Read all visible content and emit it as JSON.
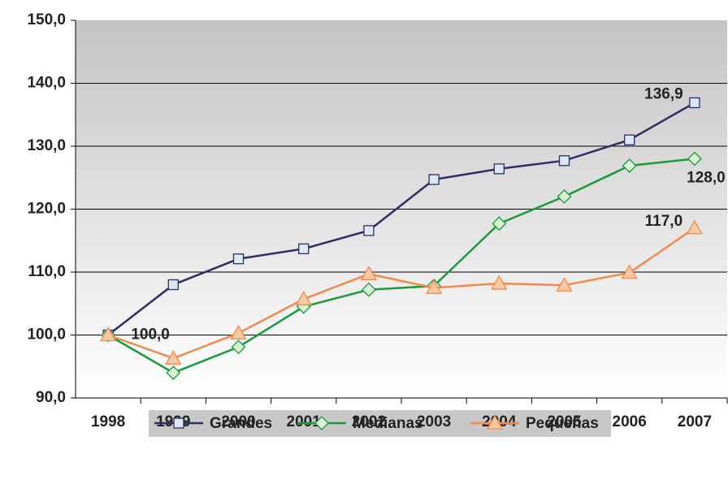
{
  "chart_data": {
    "type": "line",
    "categories": [
      "1998",
      "1999",
      "2000",
      "2001",
      "2002",
      "2003",
      "2004",
      "2005",
      "2006",
      "2007"
    ],
    "series": [
      {
        "name": "Grandes",
        "color": "#2b2f66",
        "marker": "square",
        "marker_fill": "#dde8f2",
        "values": [
          100.0,
          108.0,
          112.1,
          113.7,
          116.6,
          124.7,
          126.4,
          127.7,
          131.0,
          136.9
        ],
        "value_labels": [
          "100,0",
          null,
          null,
          null,
          null,
          null,
          null,
          null,
          null,
          "136,9"
        ]
      },
      {
        "name": "Medianas",
        "color": "#1a9a3a",
        "marker": "diamond",
        "marker_fill": "#d8f2d2",
        "values": [
          100.0,
          94.0,
          98.1,
          104.5,
          107.2,
          107.8,
          117.7,
          122.0,
          126.9,
          128.0
        ],
        "value_labels": [
          null,
          null,
          null,
          null,
          null,
          null,
          null,
          null,
          null,
          "128,0"
        ]
      },
      {
        "name": "Pequeñas",
        "color": "#f08a4b",
        "marker": "triangle",
        "marker_fill": "#f9c9a2",
        "values": [
          100.0,
          96.3,
          100.3,
          105.7,
          109.7,
          107.5,
          108.2,
          107.9,
          109.9,
          117.0
        ],
        "value_labels": [
          null,
          null,
          null,
          null,
          null,
          null,
          null,
          null,
          null,
          "117,0"
        ]
      }
    ],
    "ylim": [
      90,
      150
    ],
    "yticks": [
      {
        "value": 90,
        "label": "90,0"
      },
      {
        "value": 100,
        "label": "100,0"
      },
      {
        "value": 110,
        "label": "110,0"
      },
      {
        "value": 120,
        "label": "120,0"
      },
      {
        "value": 130,
        "label": "130,0"
      },
      {
        "value": 140,
        "label": "140,0"
      },
      {
        "value": 150,
        "label": "150,0"
      }
    ],
    "grid": true,
    "legend": "bottom"
  }
}
